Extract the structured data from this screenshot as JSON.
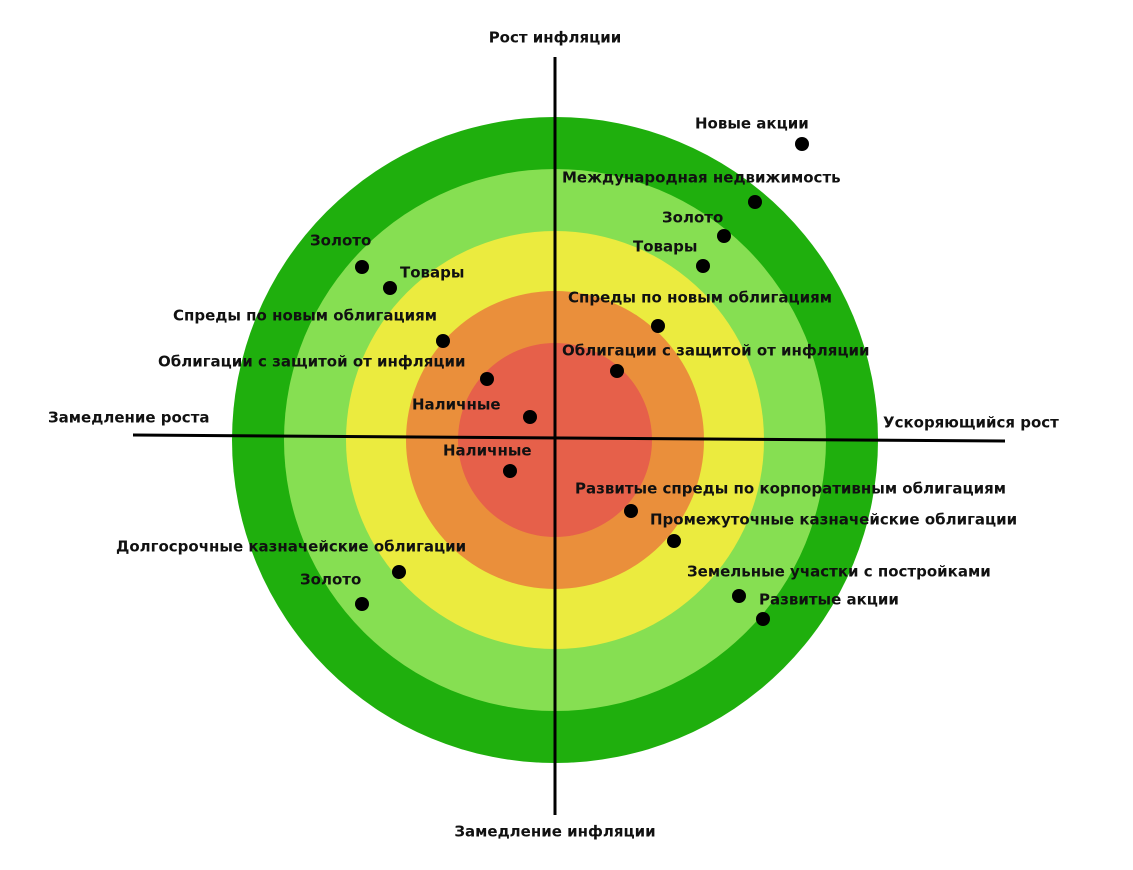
{
  "axes": {
    "top": "Рост инфляции",
    "bottom": "Замедление инфляции",
    "left": "Замедление роста",
    "right": "Ускоряющийся рост"
  },
  "items": [
    {
      "label": "Новые акции"
    },
    {
      "label": "Международная недвижимость"
    },
    {
      "label": "Золото"
    },
    {
      "label": "Товары"
    },
    {
      "label": "Спреды по новым облигациям"
    },
    {
      "label": "Облигации с защитой от инфляции"
    },
    {
      "label": "Золото"
    },
    {
      "label": "Товары"
    },
    {
      "label": "Спреды по новым облигациям"
    },
    {
      "label": "Облигации с защитой от инфляции"
    },
    {
      "label": "Наличные"
    },
    {
      "label": "Наличные"
    },
    {
      "label": "Развитые спреды по корпоративным облигациям"
    },
    {
      "label": "Промежуточные казначейские облигации"
    },
    {
      "label": "Долгосрочные казначейские облигации"
    },
    {
      "label": "Золото"
    },
    {
      "label": "Земельные участки с постройками"
    },
    {
      "label": "Развитые акции"
    }
  ]
}
